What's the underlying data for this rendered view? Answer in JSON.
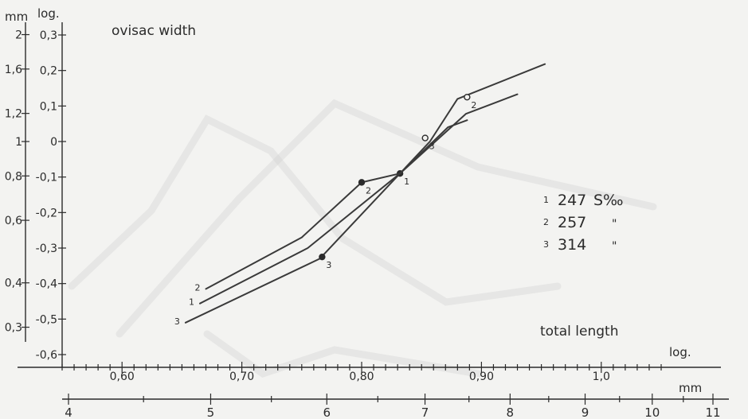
{
  "chart_data": {
    "type": "line",
    "title": "ovisac width",
    "xlabel_log": "log.",
    "xlabel_linear": "mm",
    "ylabel_linear": "mm",
    "ylabel_log": "log.",
    "x_annotation": "total length",
    "x_log_range": [
      0.55,
      1.05
    ],
    "y_log_range": [
      -0.6,
      0.3
    ],
    "x_log_ticks": [
      "0,60",
      "0,70",
      "0,80",
      "0,90",
      "1,0"
    ],
    "x_log_tick_values": [
      0.6,
      0.7,
      0.8,
      0.9,
      1.0
    ],
    "x_mm_ticks": [
      "4",
      "5",
      "6",
      "7",
      "8",
      "9",
      "10",
      "11"
    ],
    "x_mm_tick_values": [
      4,
      5,
      6,
      7,
      8,
      9,
      10,
      11
    ],
    "y_log_ticks": [
      "0,3",
      "0,2",
      "0,1",
      "0",
      "-0,1",
      "-0,2",
      "-0,3",
      "-0,4",
      "-0,5",
      "-0,6"
    ],
    "y_log_tick_values": [
      0.3,
      0.2,
      0.1,
      0.0,
      -0.1,
      -0.2,
      -0.3,
      -0.4,
      -0.5,
      -0.6
    ],
    "y_mm_ticks": [
      "2",
      "1,6",
      "1,2",
      "1",
      "0,8",
      "0,6",
      "0,4",
      "0,3"
    ],
    "y_mm_tick_values": [
      2.0,
      1.6,
      1.2,
      1.0,
      0.8,
      0.6,
      0.4,
      0.3
    ],
    "series": [
      {
        "name": "247 S‰",
        "legend_number": "1",
        "start_label": "1",
        "points": [
          [
            0.665,
            -0.456
          ],
          [
            0.755,
            -0.3
          ],
          [
            0.832,
            -0.09
          ],
          [
            0.887,
            0.078
          ],
          [
            0.93,
            0.133
          ]
        ],
        "marked": [
          {
            "x": 0.832,
            "y": -0.09,
            "style": "filled",
            "label": "1"
          }
        ]
      },
      {
        "name": "257",
        "legend_number": "2",
        "start_label": "2",
        "points": [
          [
            0.67,
            -0.415
          ],
          [
            0.75,
            -0.27
          ],
          [
            0.8,
            -0.115
          ],
          [
            0.832,
            -0.09
          ],
          [
            0.857,
            0.0
          ],
          [
            0.88,
            0.12
          ],
          [
            0.953,
            0.218
          ]
        ],
        "marked": [
          {
            "x": 0.8,
            "y": -0.115,
            "style": "filled",
            "label": "2"
          },
          {
            "x": 0.888,
            "y": 0.125,
            "style": "open",
            "label": "2"
          }
        ]
      },
      {
        "name": "314",
        "legend_number": "3",
        "start_label": "3",
        "points": [
          [
            0.653,
            -0.51
          ],
          [
            0.765,
            -0.33
          ],
          [
            0.832,
            -0.09
          ],
          [
            0.872,
            0.04
          ],
          [
            0.888,
            0.06
          ]
        ],
        "marked": [
          {
            "x": 0.767,
            "y": -0.325,
            "style": "filled",
            "label": "3"
          },
          {
            "x": 0.853,
            "y": 0.01,
            "style": "open",
            "label": "3"
          }
        ]
      }
    ],
    "legend": [
      {
        "number": "1",
        "value": "247",
        "unit": "S‰"
      },
      {
        "number": "2",
        "value": "257",
        "unit": "\""
      },
      {
        "number": "3",
        "value": "314",
        "unit": "\""
      }
    ]
  }
}
